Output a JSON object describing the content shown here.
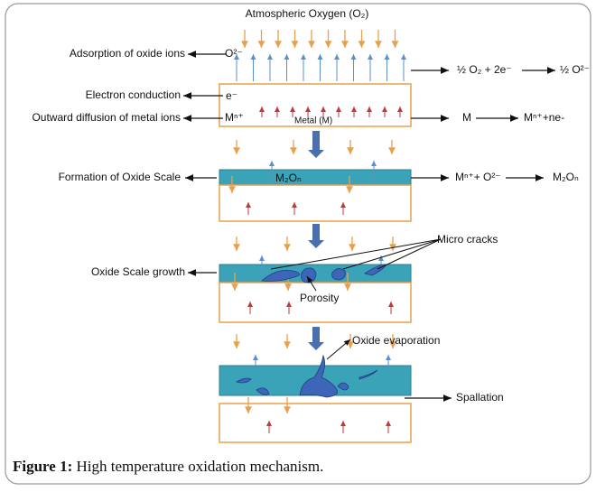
{
  "diagram": {
    "top_label": "Atmospheric Oxygen (O₂)",
    "left_labels": [
      "Adsorption of oxide ions",
      "Electron conduction",
      "Outward diffusion of metal ions",
      "Formation of Oxide Scale",
      "Oxide Scale growth"
    ],
    "species": {
      "oxide_ion": "O²⁻",
      "electron": "e⁻",
      "metal_ion": "Mⁿ⁺",
      "metal": "Metal (M)",
      "scale": "M₂Oₙ"
    },
    "reactions": [
      {
        "left": "½ O₂ + 2e⁻",
        "right": "½ O²⁻"
      },
      {
        "left": "M",
        "right": "Mⁿ⁺+ne-"
      },
      {
        "left": "Mⁿ⁺+ O²⁻",
        "right": "M₂Oₙ"
      }
    ],
    "annotations": {
      "micro_cracks": "Micro cracks",
      "porosity": "Porosity",
      "evaporation": "Oxide evaporation",
      "spallation": "Spallation"
    }
  },
  "caption": {
    "label": "Figure 1:",
    "text": "High temperature oxidation mechanism."
  }
}
